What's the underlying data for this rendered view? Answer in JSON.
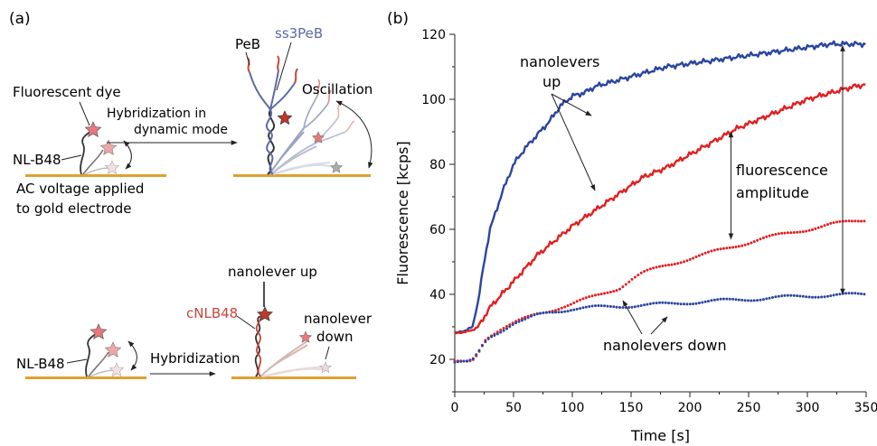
{
  "panel_a": {
    "label": "(a)",
    "top": {
      "fluorescent_dye": "Fluorescent dye",
      "nl_b48": "NL-B48",
      "ac_line1": "AC voltage applied",
      "ac_line2": "to gold electrode",
      "hyb_line1": "Hybridization in",
      "hyb_line2": "dynamic mode",
      "peb": "PeB",
      "ss3peb": "ss3PeB",
      "oscillation": "Oscillation"
    },
    "bottom": {
      "nl_b48": "NL-B48",
      "hybridization": "Hybridization",
      "cnlb48": "cNLB48",
      "nanolever_up": "nanolever up",
      "nanolever_down_line1": "nanolever",
      "nanolever_down_line2": "down"
    }
  },
  "panel_b": {
    "label": "(b)"
  },
  "colors": {
    "blue": "#2a45a0",
    "red": "#e02020",
    "gold": "#e0a030",
    "dark": "#333333",
    "strand_blue": "#5a6aa8",
    "strand_red": "#c8463a"
  },
  "chart_data": {
    "type": "line",
    "xlabel": "Time [s]",
    "ylabel": "Fluorescence [kcps]",
    "xlim": [
      0,
      350
    ],
    "ylim": [
      10,
      120
    ],
    "xticks": [
      0,
      50,
      100,
      150,
      200,
      250,
      300,
      350
    ],
    "yticks": [
      20,
      40,
      60,
      80,
      100,
      120
    ],
    "annotations": {
      "up_line1": "nanolevers",
      "up_line2": "up",
      "amp_line1": "fluorescence",
      "amp_line2": "amplitude",
      "down": "nanolevers down"
    },
    "series": [
      {
        "style": "solid",
        "color": "#2a45a0",
        "x": [
          0,
          5,
          10,
          15,
          20,
          25,
          30,
          40,
          50,
          60,
          70,
          80,
          90,
          100,
          110,
          120,
          140,
          160,
          180,
          200,
          220,
          240,
          260,
          280,
          300,
          320,
          340,
          350
        ],
        "y": [
          28,
          28.5,
          29,
          30,
          38,
          50,
          60,
          71,
          80,
          85,
          89,
          93,
          98,
          101,
          102,
          104,
          106,
          108,
          110,
          111,
          112,
          113,
          114,
          115,
          116,
          117,
          117,
          117
        ]
      },
      {
        "style": "solid",
        "color": "#e02020",
        "x": [
          0,
          10,
          15,
          20,
          25,
          30,
          40,
          50,
          60,
          70,
          80,
          100,
          120,
          140,
          160,
          180,
          200,
          220,
          240,
          260,
          280,
          300,
          320,
          340,
          350
        ],
        "y": [
          28,
          28.5,
          29,
          30,
          33,
          36,
          40,
          44,
          48,
          52,
          55,
          61,
          66,
          71,
          76,
          79,
          83,
          87,
          91,
          94,
          97,
          100,
          102,
          104,
          104.5
        ]
      },
      {
        "style": "dotted",
        "color": "#e02020",
        "x": [
          0,
          10,
          15,
          20,
          25,
          30,
          40,
          50,
          60,
          70,
          80,
          100,
          120,
          140,
          150,
          160,
          180,
          200,
          220,
          240,
          260,
          280,
          300,
          320,
          340,
          350
        ],
        "y": [
          19,
          19,
          19.5,
          22,
          26,
          27.5,
          29.5,
          31,
          32.5,
          34,
          35,
          37,
          39.5,
          42,
          44.5,
          46.5,
          49,
          51,
          53,
          55,
          57,
          58.5,
          60,
          61.5,
          62.5,
          63
        ]
      },
      {
        "style": "dotted",
        "color": "#2a45a0",
        "x": [
          0,
          10,
          15,
          20,
          25,
          30,
          40,
          50,
          60,
          70,
          80,
          100,
          120,
          150,
          180,
          200,
          250,
          300,
          350
        ],
        "y": [
          19,
          19,
          19.5,
          22,
          25,
          27,
          29,
          31,
          32,
          33.5,
          34.5,
          35.5,
          36,
          36.5,
          37,
          37.5,
          38.5,
          39.5,
          40
        ]
      }
    ]
  }
}
